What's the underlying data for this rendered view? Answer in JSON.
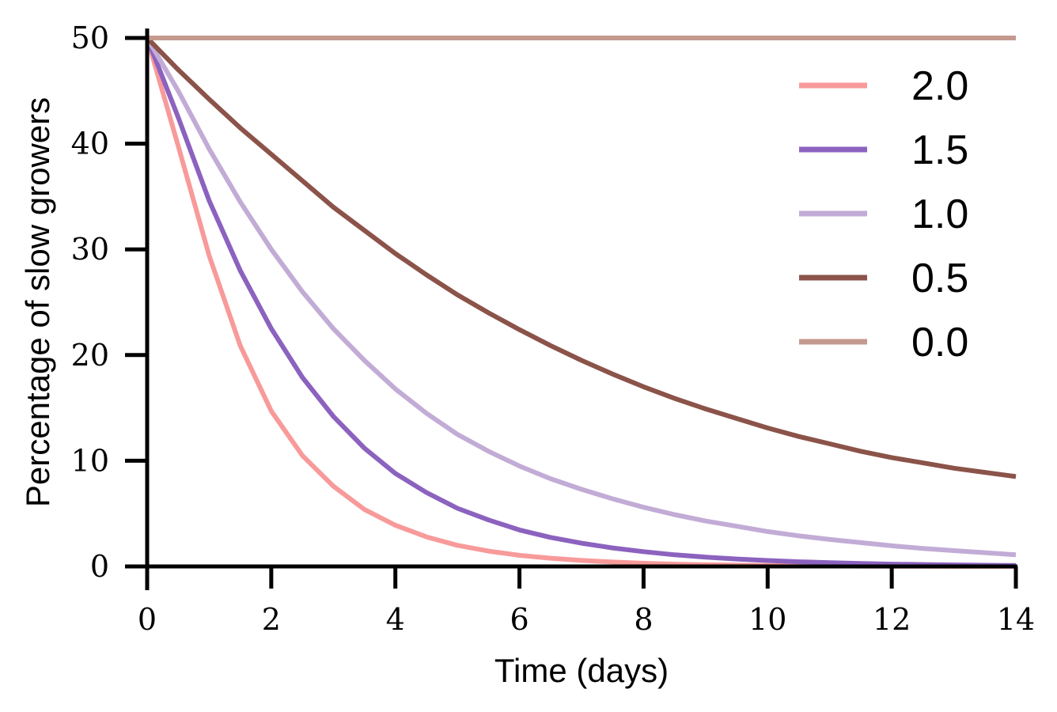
{
  "chart_data": {
    "type": "line",
    "title": "",
    "xlabel": "Time (days)",
    "ylabel": "Percentage of slow growers",
    "xlim": [
      0,
      14
    ],
    "ylim": [
      0,
      50
    ],
    "xticks": [
      0,
      2,
      4,
      6,
      8,
      10,
      12,
      14
    ],
    "yticks": [
      0,
      10,
      20,
      30,
      40,
      50
    ],
    "grid": false,
    "legend_position": "top-right",
    "x": [
      0,
      0.5,
      1,
      1.5,
      2,
      2.5,
      3,
      3.5,
      4,
      4.5,
      5,
      5.5,
      6,
      6.5,
      7,
      7.5,
      8,
      8.5,
      9,
      9.5,
      10,
      10.5,
      11,
      11.5,
      12,
      12.5,
      13,
      13.5,
      14
    ],
    "series": [
      {
        "name": "2.0",
        "color": "#f89a9a",
        "values": [
          50.0,
          39.8,
          29.4,
          20.9,
          14.7,
          10.5,
          7.6,
          5.4,
          3.9,
          2.8,
          2.0,
          1.45,
          1.05,
          0.78,
          0.57,
          0.42,
          0.3,
          0.22,
          0.16,
          0.12,
          0.09,
          0.06,
          0.05,
          0.03,
          0.02,
          0.02,
          0.01,
          0.01,
          0.01
        ]
      },
      {
        "name": "1.5",
        "color": "#8c62bf",
        "values": [
          50.0,
          42.5,
          34.6,
          28.0,
          22.5,
          17.9,
          14.2,
          11.2,
          8.8,
          7.0,
          5.5,
          4.4,
          3.45,
          2.75,
          2.2,
          1.75,
          1.4,
          1.1,
          0.88,
          0.7,
          0.56,
          0.44,
          0.35,
          0.28,
          0.22,
          0.18,
          0.14,
          0.11,
          0.09
        ]
      },
      {
        "name": "1.0",
        "color": "#c2acd6",
        "values": [
          50.0,
          45.0,
          39.5,
          34.5,
          30.0,
          26.0,
          22.5,
          19.5,
          16.8,
          14.5,
          12.5,
          10.9,
          9.5,
          8.3,
          7.3,
          6.4,
          5.6,
          4.9,
          4.3,
          3.8,
          3.3,
          2.9,
          2.55,
          2.25,
          1.95,
          1.7,
          1.5,
          1.3,
          1.1
        ]
      },
      {
        "name": "0.5",
        "color": "#8b5349",
        "values": [
          50.0,
          47.0,
          44.2,
          41.5,
          39.0,
          36.5,
          34.0,
          31.8,
          29.6,
          27.6,
          25.7,
          24.0,
          22.4,
          20.9,
          19.5,
          18.2,
          17.0,
          15.9,
          14.9,
          14.0,
          13.1,
          12.3,
          11.6,
          10.9,
          10.3,
          9.8,
          9.3,
          8.9,
          8.5
        ]
      },
      {
        "name": "0.0",
        "color": "#c49a8e",
        "values": [
          50,
          50,
          50,
          50,
          50,
          50,
          50,
          50,
          50,
          50,
          50,
          50,
          50,
          50,
          50,
          50,
          50,
          50,
          50,
          50,
          50,
          50,
          50,
          50,
          50,
          50,
          50,
          50,
          50
        ]
      }
    ]
  }
}
